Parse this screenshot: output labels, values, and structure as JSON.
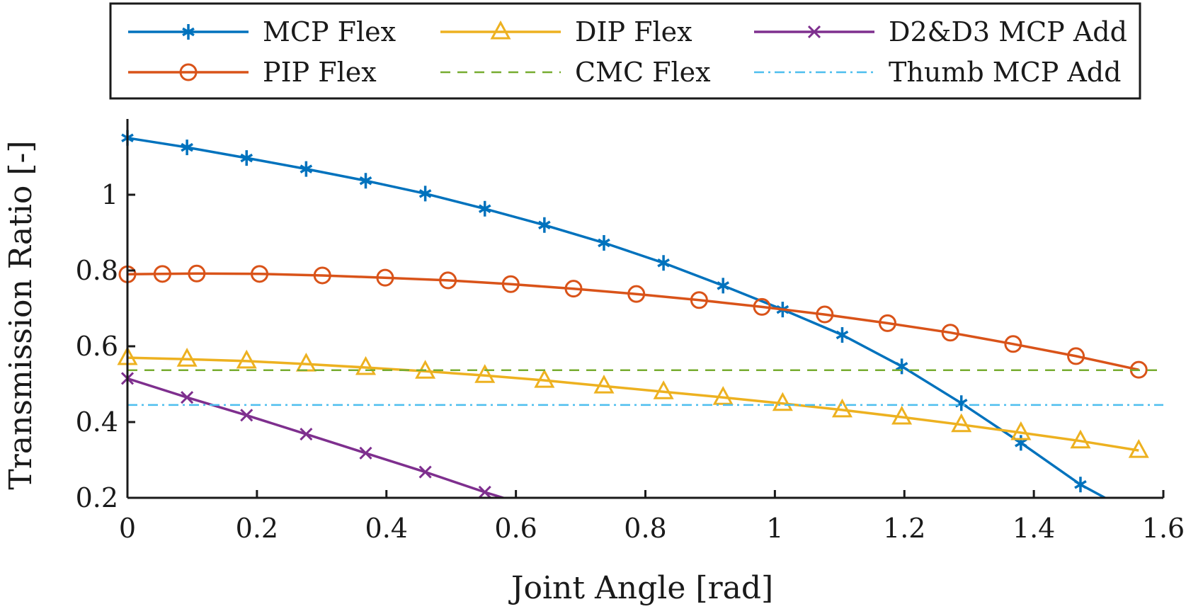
{
  "chart_data": {
    "type": "line",
    "title": "",
    "xlabel": "Joint Angle [rad]",
    "ylabel": "Transmission Ratio [-]",
    "xlim": [
      0,
      1.6
    ],
    "ylim": [
      0.2,
      1.2
    ],
    "xticks": [
      0,
      0.2,
      0.4,
      0.6,
      0.8,
      1,
      1.2,
      1.4,
      1.6
    ],
    "xtick_labels": [
      "0",
      "0.2",
      "0.4",
      "0.6",
      "0.8",
      "1",
      "1.2",
      "1.4",
      "1.6"
    ],
    "yticks": [
      0.2,
      0.4,
      0.6,
      0.8,
      1
    ],
    "ytick_labels": [
      "0.2",
      "0.4",
      "0.6",
      "0.8",
      "1"
    ],
    "grid": false,
    "legend_position": "top, outside plot area",
    "series": [
      {
        "name": "MCP Flex",
        "color": "#0072BD",
        "line_style": "solid",
        "marker": "asterisk",
        "x": [
          0,
          0.092,
          0.184,
          0.276,
          0.368,
          0.46,
          0.552,
          0.644,
          0.736,
          0.828,
          0.92,
          1.012,
          1.104,
          1.196,
          1.288,
          1.38,
          1.472,
          1.51
        ],
        "y": [
          1.15,
          1.125,
          1.097,
          1.068,
          1.037,
          1.003,
          0.963,
          0.92,
          0.873,
          0.82,
          0.76,
          0.697,
          0.63,
          0.547,
          0.45,
          0.345,
          0.235,
          0.2
        ],
        "marker_count": 17
      },
      {
        "name": "PIP Flex",
        "color": "#D95319",
        "line_style": "solid",
        "marker": "circle",
        "x": [
          0,
          0.054,
          0.107,
          0.204,
          0.301,
          0.398,
          0.495,
          0.592,
          0.689,
          0.786,
          0.883,
          0.98,
          1.077,
          1.174,
          1.271,
          1.368,
          1.465,
          1.562
        ],
        "y": [
          0.79,
          0.791,
          0.792,
          0.791,
          0.787,
          0.781,
          0.774,
          0.764,
          0.752,
          0.738,
          0.722,
          0.704,
          0.684,
          0.661,
          0.636,
          0.606,
          0.574,
          0.538
        ],
        "marker_count": 18
      },
      {
        "name": "DIP Flex",
        "color": "#EDB120",
        "line_style": "solid",
        "marker": "triangle",
        "x": [
          0,
          0.092,
          0.184,
          0.276,
          0.368,
          0.46,
          0.552,
          0.644,
          0.736,
          0.828,
          0.92,
          1.012,
          1.104,
          1.196,
          1.288,
          1.38,
          1.472,
          1.562
        ],
        "y": [
          0.57,
          0.566,
          0.561,
          0.553,
          0.544,
          0.534,
          0.523,
          0.51,
          0.495,
          0.48,
          0.465,
          0.449,
          0.432,
          0.413,
          0.393,
          0.372,
          0.35,
          0.325
        ],
        "marker_count": 18
      },
      {
        "name": "CMC Flex",
        "color": "#77AC30",
        "line_style": "dashed",
        "marker": "none",
        "x": [
          0,
          1.6
        ],
        "y": [
          0.537,
          0.537
        ]
      },
      {
        "name": "D2&D3 MCP Add",
        "color": "#7E2F8E",
        "line_style": "solid",
        "marker": "x",
        "x": [
          0,
          0.092,
          0.184,
          0.276,
          0.368,
          0.46,
          0.552,
          0.59
        ],
        "y": [
          0.515,
          0.465,
          0.418,
          0.368,
          0.318,
          0.268,
          0.215,
          0.195
        ],
        "marker_count": 7
      },
      {
        "name": "Thumb MCP Add",
        "color": "#4DBEEE",
        "line_style": "dashdot",
        "marker": "none",
        "x": [
          0,
          1.6
        ],
        "y": [
          0.445,
          0.445
        ]
      }
    ]
  }
}
